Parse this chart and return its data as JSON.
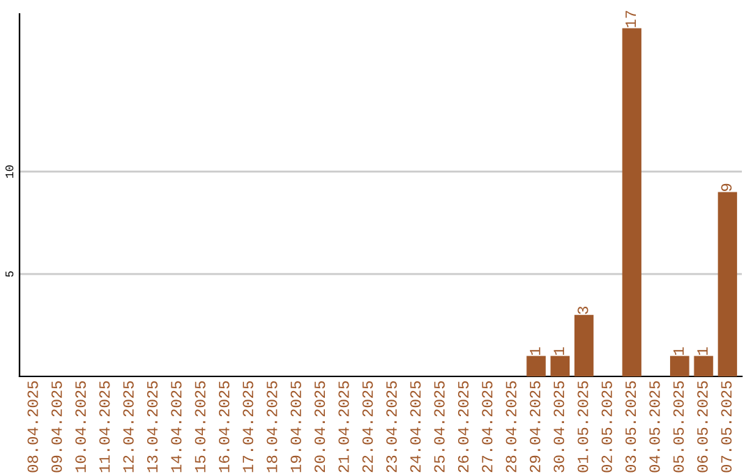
{
  "chart_data": {
    "type": "bar",
    "categories": [
      "08.04.2025",
      "09.04.2025",
      "10.04.2025",
      "11.04.2025",
      "12.04.2025",
      "13.04.2025",
      "14.04.2025",
      "15.04.2025",
      "16.04.2025",
      "17.04.2025",
      "18.04.2025",
      "19.04.2025",
      "20.04.2025",
      "21.04.2025",
      "22.04.2025",
      "23.04.2025",
      "24.04.2025",
      "25.04.2025",
      "26.04.2025",
      "27.04.2025",
      "28.04.2025",
      "29.04.2025",
      "30.04.2025",
      "01.05.2025",
      "02.05.2025",
      "03.05.2025",
      "04.05.2025",
      "05.05.2025",
      "06.05.2025",
      "07.05.2025"
    ],
    "values": [
      0,
      0,
      0,
      0,
      0,
      0,
      0,
      0,
      0,
      0,
      0,
      0,
      0,
      0,
      0,
      0,
      0,
      0,
      0,
      0,
      0,
      1,
      1,
      3,
      0,
      17,
      0,
      1,
      1,
      9
    ],
    "value_labels": [
      null,
      null,
      null,
      null,
      null,
      null,
      null,
      null,
      null,
      null,
      null,
      null,
      null,
      null,
      null,
      null,
      null,
      null,
      null,
      null,
      null,
      "1",
      "1",
      "3",
      null,
      "17",
      null,
      "1",
      "1",
      "9"
    ],
    "color": "#a0582a",
    "ylim": [
      0,
      17.7
    ],
    "yticks": [
      5,
      10
    ],
    "grid": "y"
  }
}
